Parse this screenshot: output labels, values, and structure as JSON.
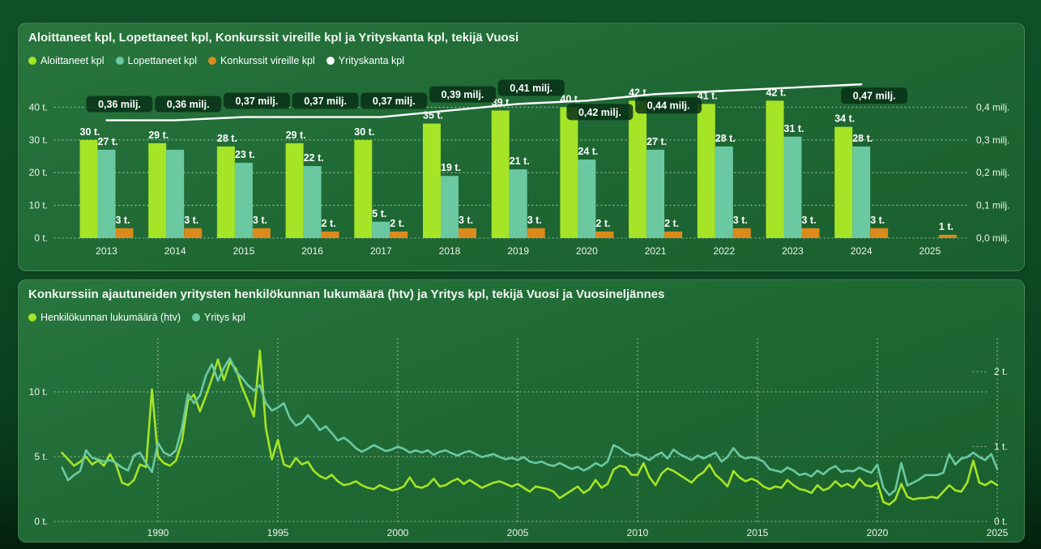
{
  "page": {
    "accent_colors": {
      "aloittaneet_green": "#a5e426",
      "lopettaneet_teal": "#6bc9a2",
      "konkurssit_orange": "#dc8a1b",
      "yrityskanta_white": "#ffffff",
      "panel_green": "#1e6733",
      "background_dark_green": "#0d4a24"
    }
  },
  "chart_data": [
    {
      "id": "yearly-bars",
      "type": "bar",
      "title": "Aloittaneet kpl, Lopettaneet kpl, Konkurssit vireille kpl ja Yrityskanta kpl, tekijä Vuosi",
      "legend": [
        {
          "label": "Aloittaneet kpl",
          "color": "#a5e426"
        },
        {
          "label": "Lopettaneet kpl",
          "color": "#6bc9a2"
        },
        {
          "label": "Konkurssit vireille kpl",
          "color": "#dc8a1b"
        },
        {
          "label": "Yrityskanta kpl",
          "color": "#ffffff"
        }
      ],
      "categories": [
        "2013",
        "2014",
        "2015",
        "2016",
        "2017",
        "2018",
        "2019",
        "2020",
        "2021",
        "2022",
        "2023",
        "2024",
        "2025"
      ],
      "series": [
        {
          "name": "Aloittaneet kpl",
          "kind": "bar",
          "color": "#a5e426",
          "axis": "left",
          "values": [
            30,
            29,
            28,
            29,
            30,
            35,
            39,
            40,
            42,
            41,
            42,
            34,
            null
          ],
          "labels": [
            "30 t.",
            "29 t.",
            "28 t.",
            "29 t.",
            "30 t.",
            "35 t.",
            "39 t.",
            "40 t.",
            "42 t.",
            "41 t.",
            "42 t.",
            "34 t.",
            null
          ]
        },
        {
          "name": "Lopettaneet kpl",
          "kind": "bar",
          "color": "#6bc9a2",
          "axis": "left",
          "values": [
            27,
            27,
            23,
            22,
            5,
            19,
            21,
            24,
            27,
            28,
            31,
            28,
            null
          ],
          "labels": [
            "27 t.",
            null,
            "23 t.",
            "22 t.",
            "5 t.",
            "19 t.",
            "21 t.",
            "24 t.",
            "27 t.",
            "28 t.",
            "31 t.",
            "28 t.",
            null
          ]
        },
        {
          "name": "Konkurssit vireille kpl",
          "kind": "bar",
          "color": "#dc8a1b",
          "axis": "left",
          "values": [
            3,
            3,
            3,
            2,
            2,
            3,
            3,
            2,
            2,
            3,
            3,
            3,
            1
          ],
          "labels": [
            "3 t.",
            "3 t.",
            "3 t.",
            "2 t.",
            "2 t.",
            "3 t.",
            "3 t.",
            "2 t.",
            "2 t.",
            "3 t.",
            "3 t.",
            "3 t.",
            "1 t."
          ]
        },
        {
          "name": "Yrityskanta kpl",
          "kind": "line",
          "color": "#ffffff",
          "axis": "right",
          "values": [
            0.36,
            0.36,
            0.37,
            0.37,
            0.37,
            0.39,
            0.41,
            0.42,
            0.44,
            0.45,
            0.46,
            0.47,
            null
          ],
          "labels": [
            "0,36 milj.",
            "0,36 milj.",
            "0,37 milj.",
            "0,37 milj.",
            "0,37 milj.",
            "0,39 milj.",
            "0,41 milj.",
            "0,42 milj.",
            "0,44 milj.",
            null,
            null,
            "0,47 milj.",
            null
          ]
        }
      ],
      "left_axis": {
        "values": [
          0,
          10,
          20,
          30,
          40
        ],
        "labels": [
          "0 t.",
          "10 t.",
          "20 t.",
          "30 t.",
          "40 t."
        ],
        "min": 0,
        "max": 40
      },
      "right_axis": {
        "values": [
          0,
          0.1,
          0.2,
          0.3,
          0.4
        ],
        "labels": [
          "0,0 milj.",
          "0,1 milj.",
          "0,2 milj.",
          "0,3 milj.",
          "0,4 milj."
        ],
        "min": 0,
        "max": 0.4
      },
      "grid": "horizontal-dotted",
      "legend_position": "top-left"
    },
    {
      "id": "quarterly-lines",
      "type": "line",
      "title": "Konkurssiin ajautuneiden yritysten henkilökunnan lukumäärä (htv) ja Yritys kpl, tekijä Vuosi ja Vuosineljännes",
      "legend": [
        {
          "label": "Henkilökunnan lukumäärä (htv)",
          "color": "#a5e426"
        },
        {
          "label": "Yritys kpl",
          "color": "#6bc9a2"
        }
      ],
      "x_start_year": 1986,
      "x_step_years": 0.25,
      "x_tick_labels": [
        "1990",
        "1995",
        "2000",
        "2005",
        "2010",
        "2015",
        "2020",
        "2025"
      ],
      "x_tick_years": [
        1990,
        1995,
        2000,
        2005,
        2010,
        2015,
        2020,
        2025
      ],
      "series": [
        {
          "name": "Henkilökunnan lukumäärä (htv)",
          "color": "#a5e426",
          "axis": "left",
          "values": [
            5.3,
            4.8,
            4.3,
            4.6,
            5.0,
            4.4,
            4.7,
            4.3,
            5.2,
            4.4,
            3.0,
            2.8,
            3.2,
            4.4,
            4.2,
            10.2,
            5.0,
            4.5,
            4.3,
            4.7,
            6.2,
            9.3,
            9.8,
            8.5,
            9.7,
            11.0,
            12.5,
            10.9,
            12.3,
            11.8,
            10.4,
            9.3,
            8.1,
            13.2,
            7.2,
            4.8,
            6.3,
            4.4,
            4.2,
            4.9,
            4.4,
            4.6,
            3.9,
            3.5,
            3.3,
            3.6,
            3.1,
            2.8,
            2.9,
            3.1,
            2.8,
            2.6,
            2.5,
            2.8,
            2.6,
            2.4,
            2.5,
            2.7,
            3.4,
            2.7,
            2.6,
            2.8,
            3.3,
            2.7,
            2.8,
            3.1,
            3.3,
            2.9,
            3.2,
            2.9,
            2.6,
            2.8,
            3.0,
            3.1,
            2.9,
            2.7,
            2.9,
            2.6,
            2.3,
            2.7,
            2.6,
            2.5,
            2.3,
            1.8,
            2.1,
            2.4,
            2.7,
            2.2,
            2.5,
            3.2,
            2.6,
            2.9,
            4.0,
            4.3,
            4.2,
            3.6,
            3.6,
            4.5,
            3.4,
            2.8,
            3.7,
            4.1,
            3.9,
            3.6,
            3.3,
            3.0,
            3.5,
            3.8,
            4.4,
            3.6,
            3.2,
            2.7,
            3.9,
            3.4,
            3.1,
            3.3,
            3.1,
            2.7,
            2.5,
            2.7,
            2.6,
            3.2,
            2.8,
            2.5,
            2.4,
            2.2,
            2.8,
            2.4,
            2.6,
            3.1,
            2.7,
            2.9,
            2.6,
            3.3,
            2.8,
            2.7,
            3.0,
            1.5,
            1.3,
            1.7,
            2.9,
            1.9,
            1.7,
            1.8,
            1.8,
            1.9,
            1.8,
            2.3,
            2.8,
            2.4,
            2.3,
            3.0,
            4.7,
            3.0,
            2.8,
            3.1,
            2.8
          ]
        },
        {
          "name": "Yritys kpl",
          "color": "#6bc9a2",
          "axis": "right",
          "values": [
            0.72,
            0.55,
            0.62,
            0.67,
            0.95,
            0.85,
            0.83,
            0.8,
            0.82,
            0.78,
            0.72,
            0.68,
            0.88,
            0.92,
            0.78,
            0.66,
            1.05,
            0.92,
            0.88,
            0.95,
            1.25,
            1.7,
            1.58,
            1.68,
            1.95,
            2.1,
            1.88,
            2.05,
            2.18,
            2.0,
            1.92,
            1.82,
            1.75,
            1.82,
            1.58,
            1.48,
            1.52,
            1.58,
            1.38,
            1.28,
            1.32,
            1.42,
            1.33,
            1.22,
            1.27,
            1.18,
            1.08,
            1.12,
            1.06,
            0.98,
            0.93,
            0.97,
            1.02,
            0.98,
            0.94,
            0.96,
            1.0,
            0.97,
            0.92,
            0.95,
            0.92,
            0.95,
            0.89,
            0.93,
            0.95,
            0.91,
            0.88,
            0.92,
            0.94,
            0.9,
            0.86,
            0.88,
            0.9,
            0.86,
            0.83,
            0.85,
            0.82,
            0.86,
            0.8,
            0.78,
            0.8,
            0.76,
            0.74,
            0.78,
            0.74,
            0.7,
            0.73,
            0.68,
            0.72,
            0.78,
            0.74,
            0.8,
            1.02,
            0.98,
            0.92,
            0.88,
            0.9,
            0.86,
            0.82,
            0.88,
            0.92,
            0.84,
            0.96,
            0.9,
            0.86,
            0.82,
            0.88,
            0.84,
            0.88,
            0.92,
            0.8,
            0.86,
            0.98,
            0.88,
            0.84,
            0.86,
            0.84,
            0.8,
            0.7,
            0.68,
            0.66,
            0.72,
            0.68,
            0.62,
            0.64,
            0.6,
            0.68,
            0.63,
            0.7,
            0.74,
            0.66,
            0.68,
            0.67,
            0.72,
            0.68,
            0.65,
            0.76,
            0.45,
            0.35,
            0.42,
            0.78,
            0.48,
            0.52,
            0.56,
            0.62,
            0.62,
            0.62,
            0.65,
            0.9,
            0.76,
            0.84,
            0.86,
            0.92,
            0.86,
            0.82,
            0.9,
            0.7
          ]
        }
      ],
      "left_axis": {
        "values": [
          0,
          5,
          10
        ],
        "labels": [
          "0 t.",
          "5 t.",
          "10 t."
        ],
        "min": 0,
        "max": 13.5
      },
      "right_axis": {
        "values": [
          0,
          1,
          2
        ],
        "labels": [
          "0 t.",
          "1 t.",
          "2 t."
        ],
        "min": 0,
        "max": 2.4
      },
      "grid": "dotted-both",
      "legend_position": "top-left"
    }
  ]
}
